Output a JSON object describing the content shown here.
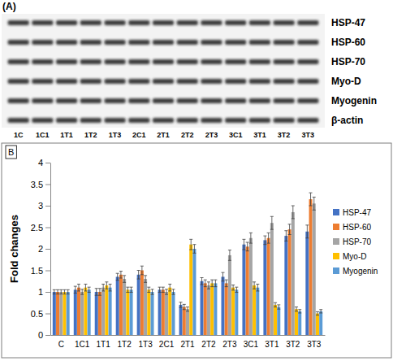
{
  "panel_labels": [
    "(A)",
    "B"
  ],
  "blot": {
    "proteins": [
      "HSP-47",
      "HSP-60",
      "HSP-70",
      "Myo-D",
      "Myogenin",
      "β-actin"
    ],
    "lanes": [
      "1C",
      "1C1",
      "1T1",
      "1T2",
      "1T3",
      "2C1",
      "2T1",
      "2T2",
      "2T3",
      "3C1",
      "3T1",
      "3T2",
      "3T3"
    ]
  },
  "chart_data": {
    "type": "bar",
    "y_label": "Fold changes",
    "categories": [
      "C",
      "1C1",
      "1T1",
      "1T2",
      "1T3",
      "2C1",
      "2T1",
      "2T2",
      "2T3",
      "3C1",
      "3T1",
      "3T2",
      "3T3"
    ],
    "series": [
      {
        "name": "HSP-47",
        "color": "#4472c4",
        "values": [
          1.0,
          1.05,
          1.0,
          1.35,
          1.4,
          1.05,
          0.7,
          1.25,
          1.35,
          2.1,
          2.2,
          2.3,
          2.4
        ],
        "errors": [
          0.05,
          0.08,
          0.08,
          0.08,
          0.1,
          0.06,
          0.06,
          0.08,
          0.1,
          0.12,
          0.1,
          0.12,
          0.15
        ]
      },
      {
        "name": "HSP-60",
        "color": "#ed7d31",
        "values": [
          1.0,
          1.1,
          1.0,
          1.4,
          1.5,
          1.05,
          0.65,
          1.2,
          1.2,
          2.05,
          2.25,
          2.45,
          3.15
        ],
        "errors": [
          0.05,
          0.08,
          0.08,
          0.08,
          0.1,
          0.06,
          0.06,
          0.08,
          0.08,
          0.1,
          0.12,
          0.12,
          0.15
        ]
      },
      {
        "name": "HSP-70",
        "color": "#a5a5a5",
        "values": [
          1.0,
          1.0,
          1.1,
          1.3,
          1.3,
          1.0,
          0.6,
          1.15,
          1.85,
          2.25,
          2.6,
          2.85,
          3.05
        ],
        "errors": [
          0.05,
          0.06,
          0.08,
          0.08,
          0.08,
          0.06,
          0.05,
          0.08,
          0.12,
          0.12,
          0.15,
          0.15,
          0.15
        ]
      },
      {
        "name": "Myo-D",
        "color": "#ffc000",
        "values": [
          1.0,
          1.1,
          1.15,
          1.05,
          1.05,
          1.1,
          2.1,
          1.2,
          1.1,
          1.15,
          0.7,
          0.6,
          0.5
        ],
        "errors": [
          0.05,
          0.08,
          0.08,
          0.06,
          0.06,
          0.08,
          0.12,
          0.08,
          0.06,
          0.08,
          0.05,
          0.05,
          0.04
        ]
      },
      {
        "name": "Myogenin",
        "color": "#5b9bd5",
        "values": [
          1.0,
          1.05,
          1.1,
          1.05,
          1.0,
          1.0,
          2.0,
          1.2,
          1.05,
          1.1,
          0.65,
          0.55,
          0.55
        ],
        "errors": [
          0.05,
          0.06,
          0.08,
          0.06,
          0.06,
          0.06,
          0.1,
          0.08,
          0.06,
          0.08,
          0.05,
          0.04,
          0.04
        ]
      }
    ],
    "ylim": [
      0,
      4
    ],
    "yticks": [
      0,
      0.5,
      1,
      1.5,
      2,
      2.5,
      3,
      3.5,
      4
    ],
    "grid": false,
    "legend": "right"
  }
}
